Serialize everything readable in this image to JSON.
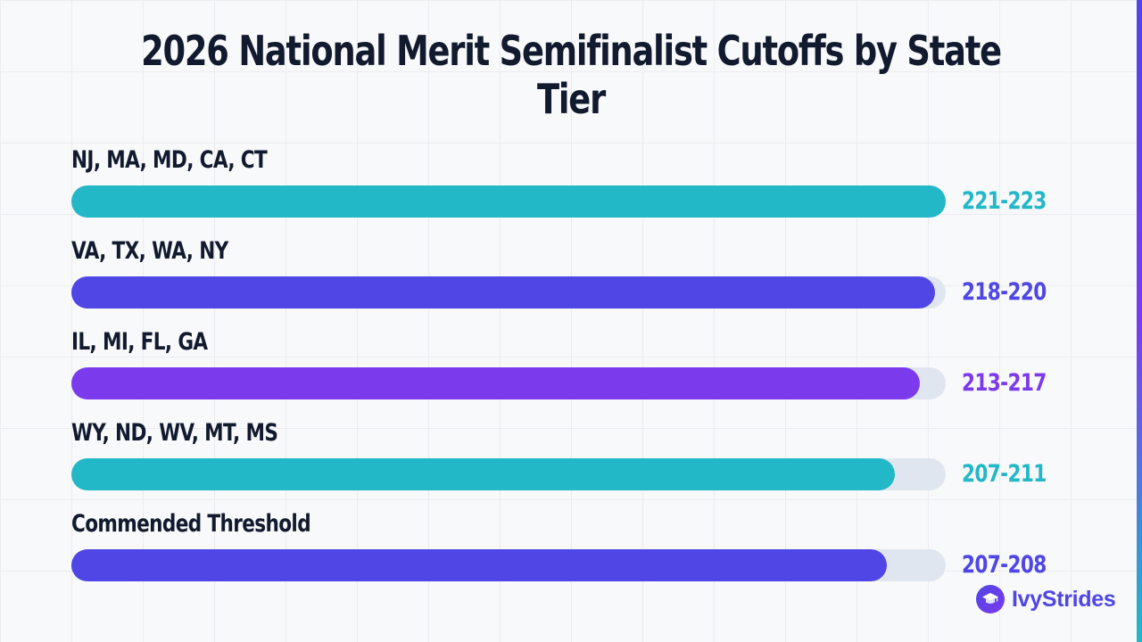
{
  "chart_data": {
    "type": "bar",
    "orientation": "horizontal",
    "title": "2026 National Merit Semifinalist Cutoffs by State Tier",
    "categories": [
      "NJ, MA, MD, CA, CT",
      "VA, TX, WA, NY",
      "IL, MI, FL, GA",
      "WY, ND, WV, MT, MS",
      "Commended Threshold"
    ],
    "values": [
      100,
      98.8,
      97,
      94.2,
      93.3
    ],
    "value_labels": [
      "221-223",
      "218-220",
      "213-217",
      "207-211",
      "207-208"
    ],
    "colors": [
      "#22b8c8",
      "#4f46e5",
      "#7c3aed",
      "#22b8c8",
      "#4f46e5"
    ],
    "xlim": [
      0,
      100
    ],
    "grid": true,
    "legend": "none"
  },
  "brand": {
    "name": "IvyStrides",
    "icon": "graduation-cap-icon"
  },
  "colors": {
    "track": "#e0e6ef",
    "text": "#111a2e",
    "accent": "#4f46e5"
  }
}
